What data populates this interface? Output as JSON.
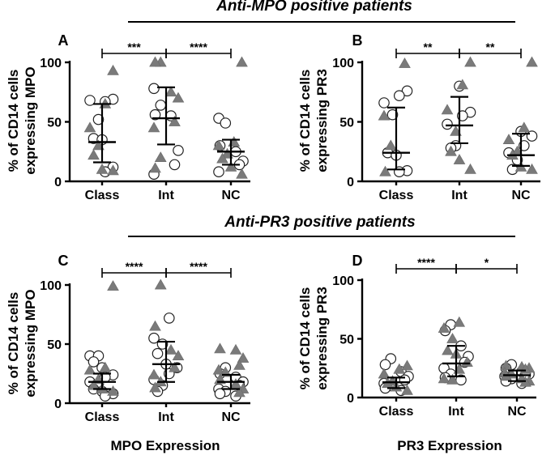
{
  "titles": {
    "top": "Anti-MPO positive patients",
    "bottom": "Anti-PR3 positive patients"
  },
  "footer": {
    "left": "MPO Expression",
    "right": "PR3 Expression"
  },
  "colors": {
    "circle_fill": "#ffffff",
    "triangle_fill": "#7a7a7a",
    "line": "#000000"
  },
  "chart_data": [
    {
      "panel": "A",
      "type": "scatter",
      "subtype": "dot-plot-median-iqr",
      "group": "Anti-MPO positive patients",
      "ylabel": "% of CD14 cells expressing MPO",
      "ylabel_lines": [
        "% of CD14 cells",
        "expressing MPO"
      ],
      "categories": [
        "Class",
        "Int",
        "NC"
      ],
      "ylim": [
        0,
        100
      ],
      "yticks": [
        0,
        50,
        100
      ],
      "groups": [
        {
          "name": "Class",
          "median": 33,
          "q1": 16,
          "q3": 65,
          "circles": [
            69,
            67,
            68,
            52,
            36,
            35,
            12,
            8
          ],
          "triangles": [
            93,
            65,
            45,
            30,
            22,
            10,
            9
          ]
        },
        {
          "name": "Int",
          "median": 53,
          "q1": 31,
          "q3": 79,
          "circles": [
            78,
            64,
            56,
            55,
            26,
            14,
            6
          ],
          "triangles": [
            100,
            100,
            75,
            70,
            50,
            45,
            20,
            11
          ]
        },
        {
          "name": "NC",
          "median": 25,
          "q1": 14,
          "q3": 35,
          "circles": [
            53,
            49,
            30,
            25,
            17,
            14,
            8
          ],
          "triangles": [
            100,
            33,
            30,
            23,
            19,
            12,
            6
          ]
        }
      ],
      "significance": [
        {
          "from": "Class",
          "to": "Int",
          "label": "***"
        },
        {
          "from": "Int",
          "to": "NC",
          "label": "****"
        }
      ]
    },
    {
      "panel": "B",
      "type": "scatter",
      "subtype": "dot-plot-median-iqr",
      "group": "Anti-MPO positive patients",
      "ylabel": "% of CD14 cells expressing PR3",
      "ylabel_lines": [
        "% of CD14 cells",
        "expressing PR3"
      ],
      "categories": [
        "Class",
        "Int",
        "NC"
      ],
      "ylim": [
        0,
        100
      ],
      "yticks": [
        0,
        50,
        100
      ],
      "groups": [
        {
          "name": "Class",
          "median": 24,
          "q1": 10,
          "q3": 62,
          "circles": [
            76,
            72,
            66,
            56,
            24,
            22,
            9,
            8
          ],
          "triangles": [
            99,
            55,
            30,
            8
          ]
        },
        {
          "name": "Int",
          "median": 47,
          "q1": 32,
          "q3": 71,
          "circles": [
            80,
            58,
            55,
            48,
            30,
            28
          ],
          "triangles": [
            100,
            81,
            60,
            42,
            25,
            18,
            10
          ]
        },
        {
          "name": "NC",
          "median": 22,
          "q1": 13,
          "q3": 40,
          "circles": [
            42,
            38,
            30,
            24,
            18,
            10
          ],
          "triangles": [
            100,
            45,
            35,
            25,
            22,
            12,
            10
          ]
        }
      ],
      "significance": [
        {
          "from": "Class",
          "to": "Int",
          "label": "**"
        },
        {
          "from": "Int",
          "to": "NC",
          "label": "**"
        }
      ]
    },
    {
      "panel": "C",
      "type": "scatter",
      "subtype": "dot-plot-median-iqr",
      "group": "Anti-PR3 positive patients",
      "ylabel": "% of CD14 cells expressing MPO",
      "ylabel_lines": [
        "% of CD14 cells",
        "expressing MPO"
      ],
      "categories": [
        "Class",
        "Int",
        "NC"
      ],
      "ylim": [
        0,
        100
      ],
      "yticks": [
        0,
        50,
        100
      ],
      "groups": [
        {
          "name": "Class",
          "median": 18,
          "q1": 12,
          "q3": 25,
          "circles": [
            40,
            40,
            35,
            30,
            24,
            22,
            18,
            16,
            12,
            10,
            8,
            6
          ],
          "triangles": [
            99,
            30,
            28,
            20,
            15,
            12,
            10
          ]
        },
        {
          "name": "Int",
          "median": 33,
          "q1": 18,
          "q3": 52,
          "circles": [
            72,
            55,
            50,
            42,
            33,
            30,
            25,
            20,
            15,
            10
          ],
          "triangles": [
            100,
            65,
            45,
            40,
            30,
            24,
            18,
            13
          ]
        },
        {
          "name": "NC",
          "median": 18,
          "q1": 12,
          "q3": 24,
          "circles": [
            30,
            25,
            22,
            18,
            15,
            12,
            10,
            8,
            6
          ],
          "triangles": [
            46,
            45,
            38,
            32,
            28,
            26,
            20,
            16,
            12,
            9
          ]
        }
      ],
      "significance": [
        {
          "from": "Class",
          "to": "Int",
          "label": "****"
        },
        {
          "from": "Int",
          "to": "NC",
          "label": "****"
        }
      ]
    },
    {
      "panel": "D",
      "type": "scatter",
      "subtype": "dot-plot-median-iqr",
      "group": "Anti-PR3 positive patients",
      "ylabel": "% of CD14 cells expressing PR3",
      "ylabel_lines": [
        "% of CD14 cells",
        "expressing PR3"
      ],
      "categories": [
        "Class",
        "Int",
        "NC"
      ],
      "ylim": [
        0,
        100
      ],
      "yticks": [
        0,
        50,
        100
      ],
      "groups": [
        {
          "name": "Class",
          "median": 13,
          "q1": 8,
          "q3": 17,
          "circles": [
            33,
            28,
            22,
            18,
            15,
            12,
            10,
            8,
            6
          ],
          "triangles": [
            27,
            24,
            20,
            14,
            12,
            9,
            6
          ]
        },
        {
          "name": "Int",
          "median": 29,
          "q1": 18,
          "q3": 44,
          "circles": [
            62,
            57,
            44,
            35,
            30,
            25,
            20,
            17,
            15
          ],
          "triangles": [
            64,
            59,
            50,
            40,
            37,
            30,
            24,
            16,
            15
          ]
        },
        {
          "name": "NC",
          "median": 19,
          "q1": 14,
          "q3": 23,
          "circles": [
            28,
            25,
            22,
            20,
            19,
            18,
            16,
            14,
            12
          ],
          "triangles": [
            27,
            26,
            25,
            24,
            21,
            20,
            18,
            16,
            14,
            13
          ]
        }
      ],
      "significance": [
        {
          "from": "Class",
          "to": "Int",
          "label": "****"
        },
        {
          "from": "Int",
          "to": "NC",
          "label": "*"
        }
      ]
    }
  ]
}
